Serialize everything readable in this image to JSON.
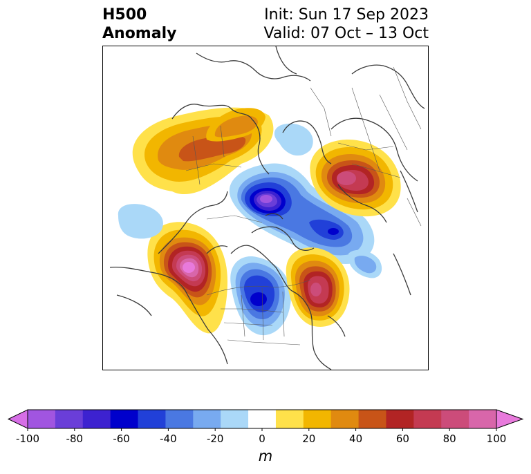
{
  "title": {
    "left_line1": "H500",
    "left_line2": "Anomaly",
    "right_line1": "Init: Sun 17 Sep 2023",
    "right_line2": "Valid: 07 Oct – 13 Oct"
  },
  "colorbar": {
    "unit": "m",
    "ticks": [
      "-100",
      "-80",
      "-60",
      "-40",
      "-20",
      "0",
      "20",
      "40",
      "60",
      "80",
      "100"
    ],
    "colors": [
      "#d66ee6",
      "#a155e0",
      "#6a3ed8",
      "#3d22d0",
      "#0000cc",
      "#2140d8",
      "#4a78e2",
      "#78aaf0",
      "#aad8f8",
      "#ffffff",
      "#ffe14a",
      "#f2b600",
      "#e08a10",
      "#c85418",
      "#b22424",
      "#c43a52",
      "#cc4c7a",
      "#d866aa",
      "#e87adc"
    ]
  },
  "chart_data": {
    "type": "heatmap",
    "field": "500 hPa geopotential height anomaly",
    "levels": [
      -100,
      -90,
      -80,
      -70,
      -60,
      -50,
      -40,
      -30,
      -20,
      -10,
      10,
      20,
      30,
      40,
      50,
      60,
      70,
      80,
      90,
      100
    ],
    "features": [
      {
        "region": "northern Canada",
        "sign": "positive",
        "peak": 45
      },
      {
        "region": "Arctic Ocean north of Alaska",
        "sign": "negative",
        "peak": -90
      },
      {
        "region": "Scandinavia / northwest Russia",
        "sign": "positive",
        "peak": 70
      },
      {
        "region": "Barents Sea / Greenland Sea",
        "sign": "negative",
        "peak": -70
      },
      {
        "region": "northeast Pacific off British Columbia",
        "sign": "positive",
        "peak": 95
      },
      {
        "region": "north-central United States",
        "sign": "negative",
        "peak": -65
      },
      {
        "region": "Labrador / eastern Canada",
        "sign": "positive",
        "peak": 70
      },
      {
        "region": "central North Pacific",
        "sign": "negative",
        "peak": -20
      },
      {
        "region": "central North Atlantic",
        "sign": "negative",
        "peak": -30
      }
    ]
  }
}
